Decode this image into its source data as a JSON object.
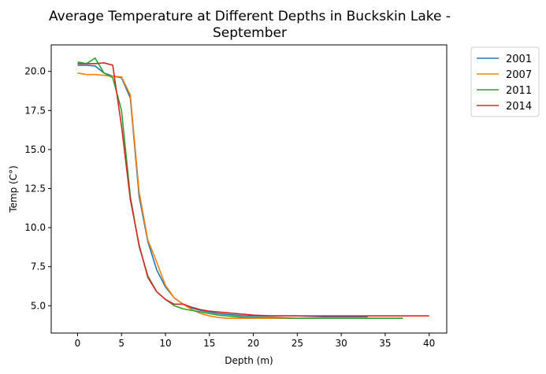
{
  "chart_data": {
    "type": "line",
    "title": [
      "Average Temperature at Different Depths in Buckskin Lake -",
      "September"
    ],
    "xlabel": "Depth (m)",
    "ylabel": "Temp (C°)",
    "xlim": [
      -3.0,
      42.0
    ],
    "ylim": [
      3.25,
      21.7
    ],
    "xticks": [
      0,
      5,
      10,
      15,
      20,
      25,
      30,
      35,
      40
    ],
    "xtick_labels": [
      "0",
      "5",
      "10",
      "15",
      "20",
      "25",
      "30",
      "35",
      "40"
    ],
    "yticks": [
      5.0,
      7.5,
      10.0,
      12.5,
      15.0,
      17.5,
      20.0
    ],
    "ytick_labels": [
      "5.0",
      "7.5",
      "10.0",
      "12.5",
      "15.0",
      "17.5",
      "20.0"
    ],
    "grid": false,
    "legend_position": "outside-right-top",
    "series": [
      {
        "name": "2001",
        "color": "#1f77b4",
        "x": [
          0,
          1,
          2,
          3,
          4,
          5,
          6,
          7,
          8,
          9,
          10,
          11,
          12,
          13,
          14,
          15,
          16,
          17,
          18,
          19,
          20,
          22,
          25,
          28,
          31,
          33
        ],
        "y": [
          20.4,
          20.4,
          20.35,
          19.9,
          19.7,
          19.6,
          18.3,
          12.0,
          9.1,
          7.3,
          6.2,
          5.5,
          5.1,
          4.85,
          4.7,
          4.6,
          4.5,
          4.45,
          4.4,
          4.35,
          4.35,
          4.35,
          4.35,
          4.3,
          4.3,
          4.3
        ]
      },
      {
        "name": "2007",
        "color": "#ff7f0e",
        "x": [
          0,
          1,
          2,
          3,
          4,
          5,
          6,
          7,
          8,
          9,
          10,
          11,
          12,
          13,
          14,
          15,
          16,
          17,
          18,
          19,
          20,
          22,
          25,
          30,
          35,
          37
        ],
        "y": [
          19.9,
          19.8,
          19.8,
          19.75,
          19.7,
          19.65,
          18.5,
          12.3,
          9.2,
          7.8,
          6.3,
          5.5,
          5.1,
          4.75,
          4.5,
          4.35,
          4.25,
          4.2,
          4.2,
          4.2,
          4.2,
          4.2,
          4.2,
          4.2,
          4.2,
          4.2
        ]
      },
      {
        "name": "2011",
        "color": "#2ca02c",
        "x": [
          0,
          1,
          2,
          3,
          4,
          5,
          6,
          7,
          8,
          9,
          10,
          11,
          12,
          13,
          14,
          15,
          16,
          17,
          18,
          19,
          20,
          22,
          25,
          30,
          35,
          37
        ],
        "y": [
          20.6,
          20.5,
          20.85,
          19.9,
          19.6,
          17.5,
          12.0,
          8.8,
          6.9,
          5.9,
          5.4,
          5.0,
          4.8,
          4.7,
          4.6,
          4.5,
          4.4,
          4.35,
          4.3,
          4.25,
          4.25,
          4.25,
          4.2,
          4.2,
          4.2,
          4.2
        ]
      },
      {
        "name": "2014",
        "color": "#d62728",
        "x": [
          0,
          1,
          2,
          3,
          4,
          5,
          6,
          7,
          8,
          9,
          10,
          11,
          12,
          13,
          14,
          15,
          16,
          17,
          18,
          19,
          20,
          22,
          25,
          30,
          35,
          40
        ],
        "y": [
          20.5,
          20.5,
          20.5,
          20.55,
          20.4,
          16.5,
          11.8,
          8.9,
          6.8,
          5.9,
          5.4,
          5.1,
          5.1,
          4.9,
          4.75,
          4.65,
          4.6,
          4.55,
          4.5,
          4.45,
          4.4,
          4.35,
          4.35,
          4.35,
          4.35,
          4.35
        ]
      }
    ]
  }
}
